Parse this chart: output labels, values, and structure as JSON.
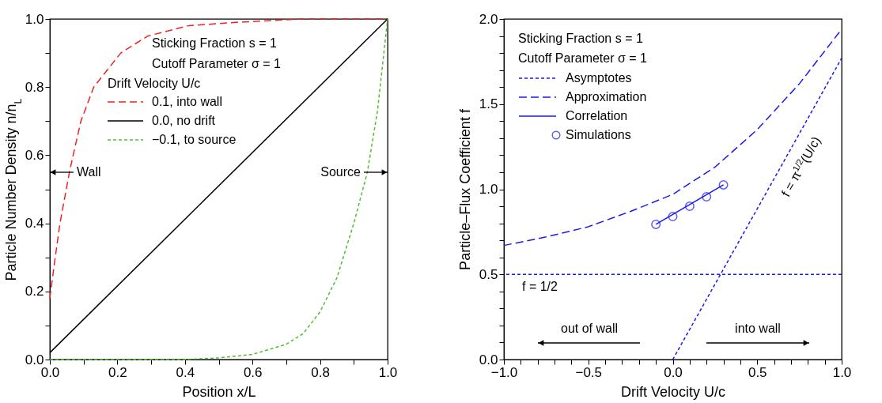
{
  "chart_data": [
    {
      "type": "line",
      "xlabel": "Position x/L",
      "ylabel": "Particle Number Density n/n$_{L}$",
      "legend_title": "Drift Velocity U/c",
      "legend": "top",
      "xlim": [
        0,
        1
      ],
      "ylim": [
        0,
        1
      ],
      "xticks": [
        {
          "value": 0,
          "label": "0.0"
        },
        {
          "value": 0.1,
          "label": null
        },
        {
          "value": 0.2,
          "label": "0.2"
        },
        {
          "value": 0.3,
          "label": null
        },
        {
          "value": 0.4,
          "label": "0.4"
        },
        {
          "value": 0.5,
          "label": null
        },
        {
          "value": 0.6,
          "label": "0.6"
        },
        {
          "value": 0.7,
          "label": null
        },
        {
          "value": 0.8,
          "label": "0.8"
        },
        {
          "value": 0.9,
          "label": null
        },
        {
          "value": 1,
          "label": "1.0"
        }
      ],
      "yticks": [
        {
          "value": 0,
          "label": "0.0"
        },
        {
          "value": 0.1,
          "label": null
        },
        {
          "value": 0.2,
          "label": "0.2"
        },
        {
          "value": 0.3,
          "label": null
        },
        {
          "value": 0.4,
          "label": "0.4"
        },
        {
          "value": 0.5,
          "label": null
        },
        {
          "value": 0.6,
          "label": "0.6"
        },
        {
          "value": 0.7,
          "label": null
        },
        {
          "value": 0.8,
          "label": "0.8"
        },
        {
          "value": 0.9,
          "label": null
        },
        {
          "value": 1,
          "label": "1.0"
        }
      ],
      "annotations": [
        "Sticking Fraction s = 1",
        "Cutoff Parameter σ = 1",
        "Wall",
        "Source"
      ],
      "series": [
        {
          "name": "0.1, into wall",
          "color": "#ee2222",
          "line_style": "dashed",
          "x": [
            0,
            0.016,
            0.03,
            0.058,
            0.069,
            0.092,
            0.13,
            0.21,
            0.29,
            0.41,
            0.55,
            0.75,
            1
          ],
          "values": [
            0.18,
            0.3,
            0.4,
            0.55,
            0.6,
            0.7,
            0.8,
            0.9,
            0.95,
            0.98,
            0.99,
            1,
            1
          ]
        },
        {
          "name": "0.0, no drift",
          "color": "#000000",
          "x": [
            0,
            1
          ],
          "values": [
            0.02,
            1
          ]
        },
        {
          "name": "−0.1, to source",
          "color": "#55bb33",
          "line_style": "dashed",
          "x": [
            0,
            0.2,
            0.4,
            0.5,
            0.6,
            0.7,
            0.75,
            0.8,
            0.85,
            0.9,
            0.94,
            0.97,
            1
          ],
          "values": [
            0,
            0,
            0,
            0.005,
            0.015,
            0.045,
            0.076,
            0.14,
            0.24,
            0.4,
            0.55,
            0.73,
            1
          ]
        }
      ]
    },
    {
      "type": "line",
      "xlabel": "Drift Velocity U/c",
      "ylabel": "Particle–Flux Coefficient f",
      "legend": "top left",
      "xlim": [
        -1,
        1
      ],
      "ylim": [
        0,
        2
      ],
      "xticks": [
        {
          "value": -1,
          "label": "−1.0"
        },
        {
          "value": -0.9,
          "label": null
        },
        {
          "value": -0.8,
          "label": null
        },
        {
          "value": -0.7,
          "label": null
        },
        {
          "value": -0.6,
          "label": null
        },
        {
          "value": -0.5,
          "label": "−0.5"
        },
        {
          "value": -0.4,
          "label": null
        },
        {
          "value": -0.3,
          "label": null
        },
        {
          "value": -0.2,
          "label": null
        },
        {
          "value": -0.1,
          "label": null
        },
        {
          "value": 0,
          "label": "0.0"
        },
        {
          "value": 0.1,
          "label": null
        },
        {
          "value": 0.2,
          "label": null
        },
        {
          "value": 0.3,
          "label": null
        },
        {
          "value": 0.4,
          "label": null
        },
        {
          "value": 0.5,
          "label": "0.5"
        },
        {
          "value": 0.6,
          "label": null
        },
        {
          "value": 0.7,
          "label": null
        },
        {
          "value": 0.8,
          "label": null
        },
        {
          "value": 0.9,
          "label": null
        },
        {
          "value": 1,
          "label": "1.0"
        }
      ],
      "yticks": [
        {
          "value": 0,
          "label": "0.0"
        },
        {
          "value": 0.1,
          "label": null
        },
        {
          "value": 0.2,
          "label": null
        },
        {
          "value": 0.3,
          "label": null
        },
        {
          "value": 0.4,
          "label": null
        },
        {
          "value": 0.5,
          "label": "0.5"
        },
        {
          "value": 0.6,
          "label": null
        },
        {
          "value": 0.7,
          "label": null
        },
        {
          "value": 0.8,
          "label": null
        },
        {
          "value": 0.9,
          "label": null
        },
        {
          "value": 1,
          "label": "1.0"
        },
        {
          "value": 1.1,
          "label": null
        },
        {
          "value": 1.2,
          "label": null
        },
        {
          "value": 1.3,
          "label": null
        },
        {
          "value": 1.4,
          "label": null
        },
        {
          "value": 1.5,
          "label": "1.5"
        },
        {
          "value": 1.6,
          "label": null
        },
        {
          "value": 1.7,
          "label": null
        },
        {
          "value": 1.8,
          "label": null
        },
        {
          "value": 1.9,
          "label": null
        },
        {
          "value": 2,
          "label": "2.0"
        }
      ],
      "annotations": [
        "Sticking Fraction s = 1",
        "Cutoff Parameter σ = 1",
        "out of wall",
        "into wall",
        "f = π$^{1/2}$(U/c)"
      ],
      "ref_lines": [
        {
          "axis": "y",
          "value": 0.5,
          "label": "f = 1/2",
          "color": "#1a1aee",
          "line_style": "dashed"
        }
      ],
      "series": [
        {
          "name": "Asymptotes",
          "color": "#1a1aee",
          "line_style": "dashed",
          "x": [
            0,
            1
          ],
          "values": [
            0,
            1.77
          ]
        },
        {
          "name": "Approximation",
          "color": "#1a1aee",
          "line_style": "dashed",
          "x": [
            -1,
            -0.75,
            -0.5,
            -0.25,
            0,
            0.25,
            0.5,
            0.75,
            1
          ],
          "values": [
            0.67,
            0.72,
            0.78,
            0.87,
            0.97,
            1.13,
            1.35,
            1.62,
            1.94
          ]
        },
        {
          "name": "Correlation",
          "color": "#1a1aee",
          "x": [
            -0.1,
            0.3
          ],
          "values": [
            0.794,
            1.026
          ]
        },
        {
          "name": "Simulations",
          "type": "scatter",
          "marker": "circle",
          "color": "#1a1aee",
          "x": [
            -0.1,
            0,
            0.1,
            0.2,
            0.3
          ],
          "values": [
            0.794,
            0.84,
            0.9,
            0.956,
            1.026
          ]
        }
      ]
    }
  ]
}
